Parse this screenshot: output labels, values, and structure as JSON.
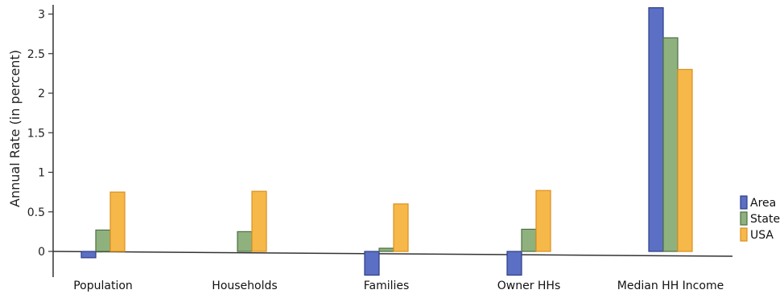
{
  "chart_data": {
    "type": "bar",
    "categories": [
      "Population",
      "Households",
      "Families",
      "Owner HHs",
      "Median HH Income"
    ],
    "series": [
      {
        "name": "Area",
        "values": [
          -0.08,
          0.0,
          -0.3,
          -0.3,
          3.08
        ],
        "color": "#5b6fc4",
        "dark": "#2e3d86"
      },
      {
        "name": "State",
        "values": [
          0.27,
          0.25,
          0.04,
          0.28,
          2.7
        ],
        "color": "#8fb17e",
        "dark": "#4e6e43"
      },
      {
        "name": "USA",
        "values": [
          0.75,
          0.76,
          0.6,
          0.77,
          2.3
        ],
        "color": "#f7b84a",
        "dark": "#d8901e"
      }
    ],
    "ylabel": "Annual Rate (in percent)",
    "xlabel": "",
    "ylim": [
      -0.3,
      3.1
    ],
    "yticks": [
      "0",
      "0.5",
      "1",
      "1.5",
      "2",
      "2.5",
      "3"
    ],
    "legend_position": "right",
    "grid": false
  }
}
